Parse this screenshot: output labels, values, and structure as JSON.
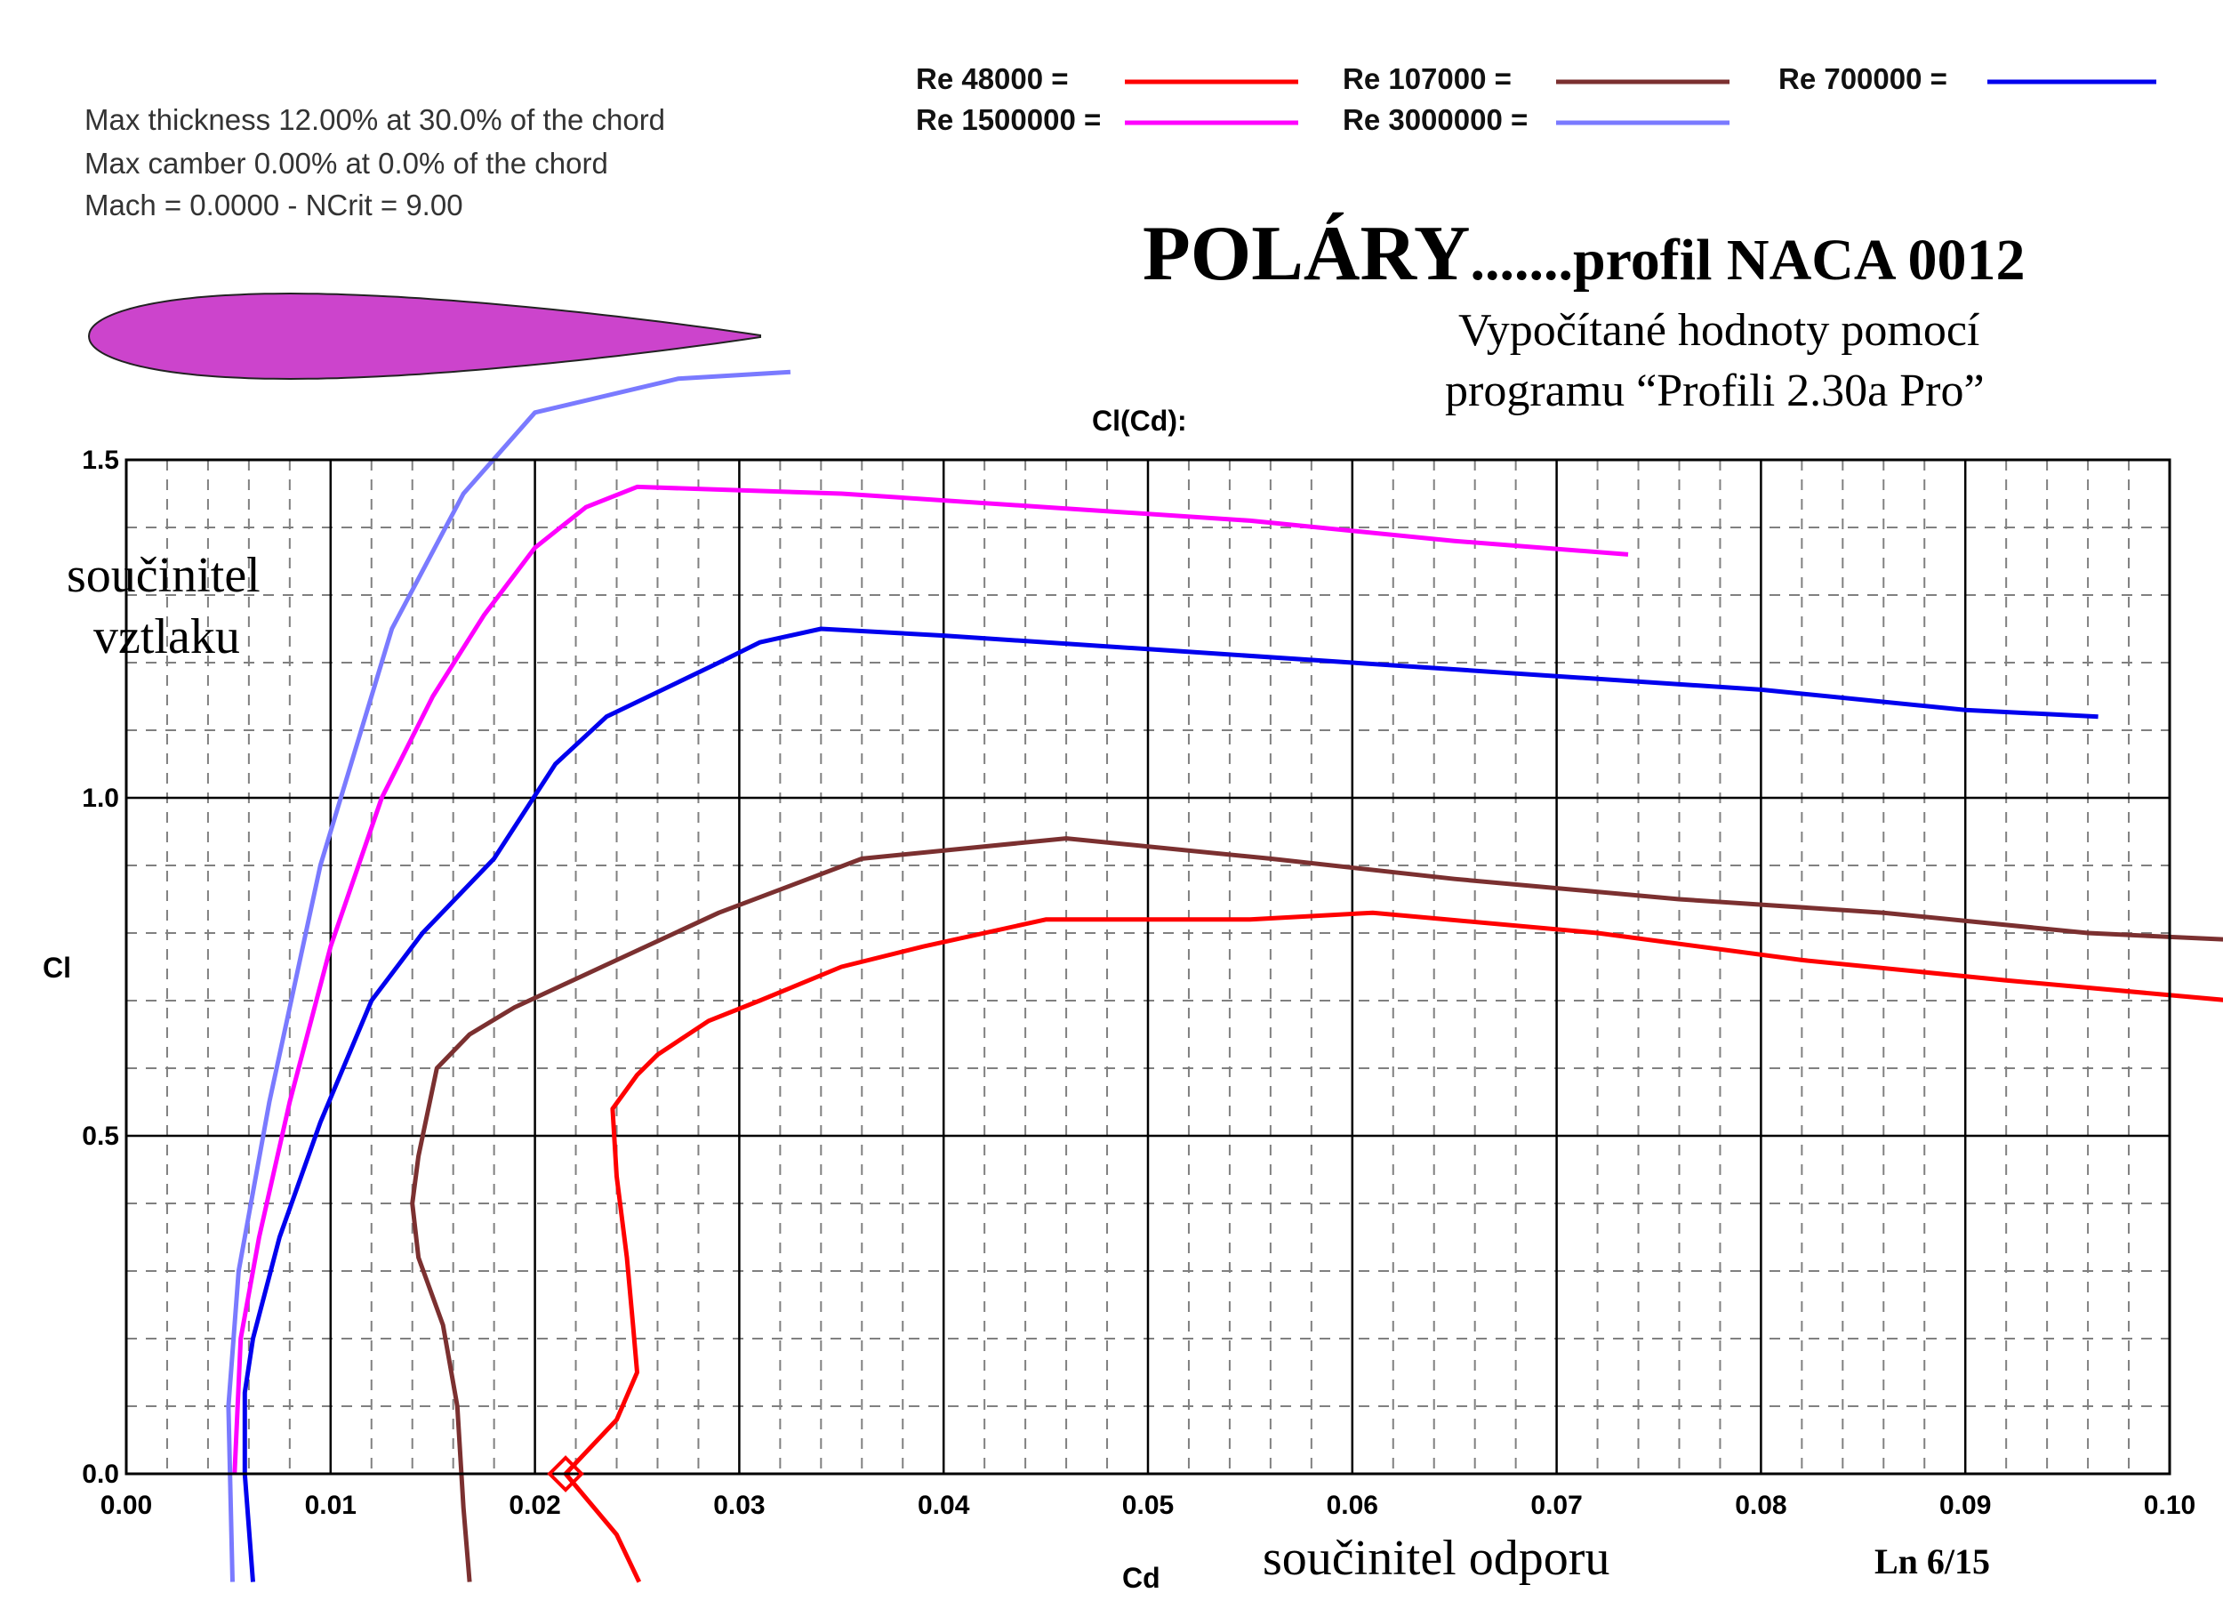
{
  "info": {
    "line1": "Max thickness 12.00% at 30.0% of the chord",
    "line2": "Max camber 0.00% at 0.0% of the chord",
    "line3": "Mach = 0.0000 - NCrit = 9.00"
  },
  "heading": {
    "title_big": "POLÁRY",
    "title_rest": ".......profil  NACA 0012",
    "subtitle_line1": "Vypočítané hodnoty pomocí",
    "subtitle_line2": "programu “Profili 2.30a Pro”"
  },
  "annotations": {
    "ylabel_cz_line1": "součinitel",
    "ylabel_cz_line2": "vztlaku",
    "xlabel_cz": "součinitel  odporu",
    "page_ref": "Ln 6/15"
  },
  "airfoil": {
    "name": "NACA 0012",
    "color": "#cc44cc"
  },
  "chart_data": {
    "type": "line",
    "title": "Cl(Cd):",
    "xlabel": "Cd",
    "ylabel": "Cl",
    "xlim": [
      0.0,
      0.1
    ],
    "ylim": [
      0.0,
      1.5
    ],
    "xticks": [
      "0.00",
      "0.01",
      "0.02",
      "0.03",
      "0.04",
      "0.05",
      "0.06",
      "0.07",
      "0.08",
      "0.09",
      "0.10"
    ],
    "yticks": [
      "0.0",
      "0.5",
      "1.0",
      "1.5"
    ],
    "grid": true,
    "legend_position": "top",
    "series": [
      {
        "name": "Re 48000 =",
        "color": "#ff0000",
        "points": [
          [
            0.0251,
            -0.16
          ],
          [
            0.024,
            -0.09
          ],
          [
            0.0215,
            0.0
          ],
          [
            0.024,
            0.08
          ],
          [
            0.025,
            0.15
          ],
          [
            0.0248,
            0.22
          ],
          [
            0.0245,
            0.32
          ],
          [
            0.024,
            0.44
          ],
          [
            0.0238,
            0.54
          ],
          [
            0.025,
            0.59
          ],
          [
            0.026,
            0.62
          ],
          [
            0.0285,
            0.67
          ],
          [
            0.031,
            0.7
          ],
          [
            0.035,
            0.75
          ],
          [
            0.039,
            0.78
          ],
          [
            0.045,
            0.82
          ],
          [
            0.055,
            0.82
          ],
          [
            0.061,
            0.83
          ],
          [
            0.072,
            0.8
          ],
          [
            0.082,
            0.76
          ],
          [
            0.092,
            0.73
          ],
          [
            0.103,
            0.7
          ]
        ]
      },
      {
        "name": "Re 107000 =",
        "color": "#7b3030",
        "points": [
          [
            0.0168,
            -0.16
          ],
          [
            0.0165,
            -0.05
          ],
          [
            0.0162,
            0.1
          ],
          [
            0.0155,
            0.22
          ],
          [
            0.0143,
            0.32
          ],
          [
            0.014,
            0.4
          ],
          [
            0.0143,
            0.47
          ],
          [
            0.0152,
            0.6
          ],
          [
            0.0168,
            0.65
          ],
          [
            0.019,
            0.69
          ],
          [
            0.024,
            0.76
          ],
          [
            0.029,
            0.83
          ],
          [
            0.036,
            0.91
          ],
          [
            0.046,
            0.94
          ],
          [
            0.056,
            0.91
          ],
          [
            0.065,
            0.88
          ],
          [
            0.076,
            0.85
          ],
          [
            0.086,
            0.83
          ],
          [
            0.096,
            0.8
          ],
          [
            0.103,
            0.79
          ],
          [
            0.105,
            0.77
          ]
        ]
      },
      {
        "name": "Re 700000 =",
        "color": "#0000ee",
        "points": [
          [
            0.0062,
            -0.16
          ],
          [
            0.0058,
            0.0
          ],
          [
            0.0058,
            0.12
          ],
          [
            0.0062,
            0.2
          ],
          [
            0.0075,
            0.35
          ],
          [
            0.0095,
            0.52
          ],
          [
            0.012,
            0.7
          ],
          [
            0.0145,
            0.8
          ],
          [
            0.018,
            0.91
          ],
          [
            0.021,
            1.05
          ],
          [
            0.0235,
            1.12
          ],
          [
            0.029,
            1.2
          ],
          [
            0.031,
            1.23
          ],
          [
            0.034,
            1.25
          ],
          [
            0.04,
            1.24
          ],
          [
            0.05,
            1.22
          ],
          [
            0.06,
            1.2
          ],
          [
            0.07,
            1.18
          ],
          [
            0.08,
            1.16
          ],
          [
            0.09,
            1.13
          ],
          [
            0.0965,
            1.12
          ]
        ]
      },
      {
        "name": "Re 1500000 =",
        "color": "#ff00ff",
        "points": [
          [
            0.0053,
            0.0
          ],
          [
            0.0056,
            0.2
          ],
          [
            0.0065,
            0.35
          ],
          [
            0.008,
            0.55
          ],
          [
            0.01,
            0.78
          ],
          [
            0.0125,
            1.0
          ],
          [
            0.015,
            1.15
          ],
          [
            0.0175,
            1.27
          ],
          [
            0.02,
            1.37
          ],
          [
            0.0225,
            1.43
          ],
          [
            0.025,
            1.46
          ],
          [
            0.035,
            1.45
          ],
          [
            0.045,
            1.43
          ],
          [
            0.055,
            1.41
          ],
          [
            0.065,
            1.38
          ],
          [
            0.0735,
            1.36
          ]
        ]
      },
      {
        "name": "Re 3000000 =",
        "color": "#7a7aff",
        "points": [
          [
            0.0052,
            -0.16
          ],
          [
            0.005,
            0.1
          ],
          [
            0.0055,
            0.3
          ],
          [
            0.007,
            0.55
          ],
          [
            0.0095,
            0.9
          ],
          [
            0.013,
            1.25
          ],
          [
            0.0165,
            1.45
          ],
          [
            0.02,
            1.57
          ],
          [
            0.027,
            1.62
          ],
          [
            0.0325,
            1.63
          ]
        ]
      }
    ]
  }
}
